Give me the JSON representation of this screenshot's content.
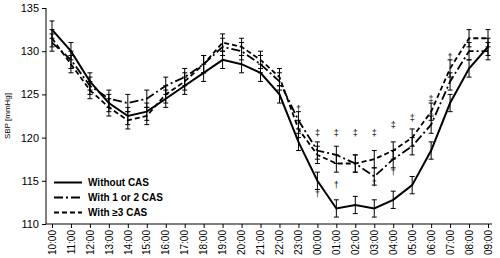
{
  "chart_data": {
    "type": "line",
    "y_label": "SBP [mmHg]",
    "categories": [
      "10:00",
      "11:00",
      "12:00",
      "13:00",
      "14:00",
      "15:00",
      "16:00",
      "17:00",
      "18:00",
      "19:00",
      "20:00",
      "21:00",
      "22:00",
      "23:00",
      "00:00",
      "01:00",
      "02:00",
      "03:00",
      "04:00",
      "05:00",
      "06:00",
      "07:00",
      "08:00",
      "09:00"
    ],
    "ylim": [
      110,
      135
    ],
    "yticks": [
      110,
      115,
      120,
      125,
      130,
      135
    ],
    "grid": false,
    "legend": "lower left",
    "series": [
      {
        "name": "Without CAS",
        "color": "#000000",
        "line_style": "solid",
        "values": [
          132.5,
          130,
          126.5,
          124,
          122.5,
          123,
          124.5,
          126,
          127.5,
          129,
          128.5,
          127.5,
          125,
          119.5,
          115,
          111.8,
          112.2,
          111.8,
          112.8,
          114.5,
          118.5,
          124,
          128,
          130.5
        ],
        "errors": [
          1,
          1,
          1,
          1,
          1,
          1,
          1,
          1,
          1,
          1,
          1,
          1,
          1,
          1,
          1,
          1,
          1,
          1,
          1,
          1,
          1,
          1,
          1,
          1
        ]
      },
      {
        "name": "With 1 or 2 CAS",
        "color": "#000000",
        "line_style": "dashdot",
        "values": [
          131,
          129,
          126,
          124.5,
          124,
          124.5,
          126,
          127,
          128.5,
          130.5,
          130,
          128.5,
          126.5,
          122,
          118.5,
          118,
          117,
          115.5,
          117.5,
          119,
          121.5,
          126.5,
          130,
          130
        ],
        "errors": [
          1,
          1,
          1,
          1,
          1,
          1,
          1,
          1,
          1,
          1,
          1,
          1,
          1,
          1,
          1,
          1,
          1,
          1,
          1,
          1,
          1,
          1,
          1,
          1
        ]
      },
      {
        "name": "With ≥3 CAS",
        "color": "#000000",
        "line_style": "dashed",
        "values": [
          131.5,
          128.5,
          125.5,
          123.5,
          122,
          122.5,
          125,
          126.5,
          128.5,
          131,
          130.5,
          129,
          127,
          121,
          118,
          117,
          117,
          117.5,
          118.5,
          120,
          123,
          128,
          131.5,
          131.5
        ],
        "errors": [
          1,
          1,
          1,
          1,
          1,
          1,
          1,
          1,
          1,
          1,
          1,
          1,
          1,
          1,
          1,
          1,
          1,
          1,
          1,
          1,
          1,
          1,
          1,
          1
        ]
      }
    ],
    "annotations": [
      {
        "category": "23:00",
        "y": 123.3,
        "text": "†"
      },
      {
        "category": "00:00",
        "y": 120.5,
        "text": "‡"
      },
      {
        "category": "00:00",
        "y": 113.5,
        "text": "†"
      },
      {
        "category": "01:00",
        "y": 120.5,
        "text": "‡"
      },
      {
        "category": "01:00",
        "y": 114.5,
        "text": "†"
      },
      {
        "category": "02:00",
        "y": 120.5,
        "text": "‡"
      },
      {
        "category": "03:00",
        "y": 120.5,
        "text": "‡"
      },
      {
        "category": "03:00",
        "y": 114.8,
        "text": "†"
      },
      {
        "category": "04:00",
        "y": 121.5,
        "text": "‡"
      },
      {
        "category": "04:00",
        "y": 116,
        "text": "†"
      },
      {
        "category": "05:00",
        "y": 122.3,
        "text": "‡"
      },
      {
        "category": "06:00",
        "y": 124.5,
        "text": "‡"
      },
      {
        "category": "06:00",
        "y": 122.5,
        "text": "†"
      },
      {
        "category": "07:00",
        "y": 129.3,
        "text": "†"
      }
    ]
  }
}
